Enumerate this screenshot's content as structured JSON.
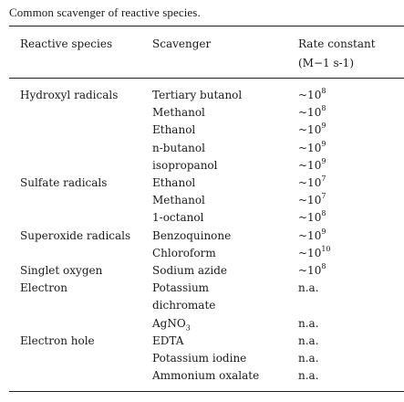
{
  "caption": "Common scavenger of reactive species.",
  "headers": {
    "species": "Reactive species",
    "scavenger": "Scavenger",
    "rate_line1": "Rate constant",
    "rate_line2": "(M−1 s-1)"
  },
  "rows": [
    {
      "species": "Hydroxyl radicals",
      "scavenger": "Tertiary butanol",
      "rate_base": "~10",
      "rate_exp": "8"
    },
    {
      "species": "",
      "scavenger": "Methanol",
      "rate_base": "~10",
      "rate_exp": "8"
    },
    {
      "species": "",
      "scavenger": "Ethanol",
      "rate_base": "~10",
      "rate_exp": "9"
    },
    {
      "species": "",
      "scavenger": "n-butanol",
      "rate_base": "~10",
      "rate_exp": "9"
    },
    {
      "species": "",
      "scavenger": "isopropanol",
      "rate_base": "~10",
      "rate_exp": "9"
    },
    {
      "species": "Sulfate radicals",
      "scavenger": "Ethanol",
      "rate_base": "~10",
      "rate_exp": "7"
    },
    {
      "species": "",
      "scavenger": "Methanol",
      "rate_base": "~10",
      "rate_exp": "7"
    },
    {
      "species": "",
      "scavenger": "1-octanol",
      "rate_base": "~10",
      "rate_exp": "8"
    },
    {
      "species": "Superoxide radicals",
      "scavenger": "Benzoquinone",
      "rate_base": "~10",
      "rate_exp": "9"
    },
    {
      "species": "",
      "scavenger": "Chloroform",
      "rate_base": "~10",
      "rate_exp": "10"
    },
    {
      "species": "Singlet oxygen",
      "scavenger": "Sodium azide",
      "rate_base": "~10",
      "rate_exp": "8"
    },
    {
      "species": "Electron",
      "scavenger": "Potassium",
      "rate_base": "n.a.",
      "rate_exp": ""
    },
    {
      "species": "",
      "scavenger": "dichromate",
      "rate_base": "",
      "rate_exp": ""
    },
    {
      "species": "",
      "scavenger": "AgNO",
      "scavenger_sub": "3",
      "rate_base": "n.a.",
      "rate_exp": ""
    },
    {
      "species": "Electron hole",
      "scavenger": "EDTA",
      "rate_base": "n.a.",
      "rate_exp": ""
    },
    {
      "species": "",
      "scavenger": "Potassium iodine",
      "rate_base": "n.a.",
      "rate_exp": ""
    },
    {
      "species": "",
      "scavenger": "Ammonium oxalate",
      "rate_base": "n.a.",
      "rate_exp": ""
    }
  ]
}
